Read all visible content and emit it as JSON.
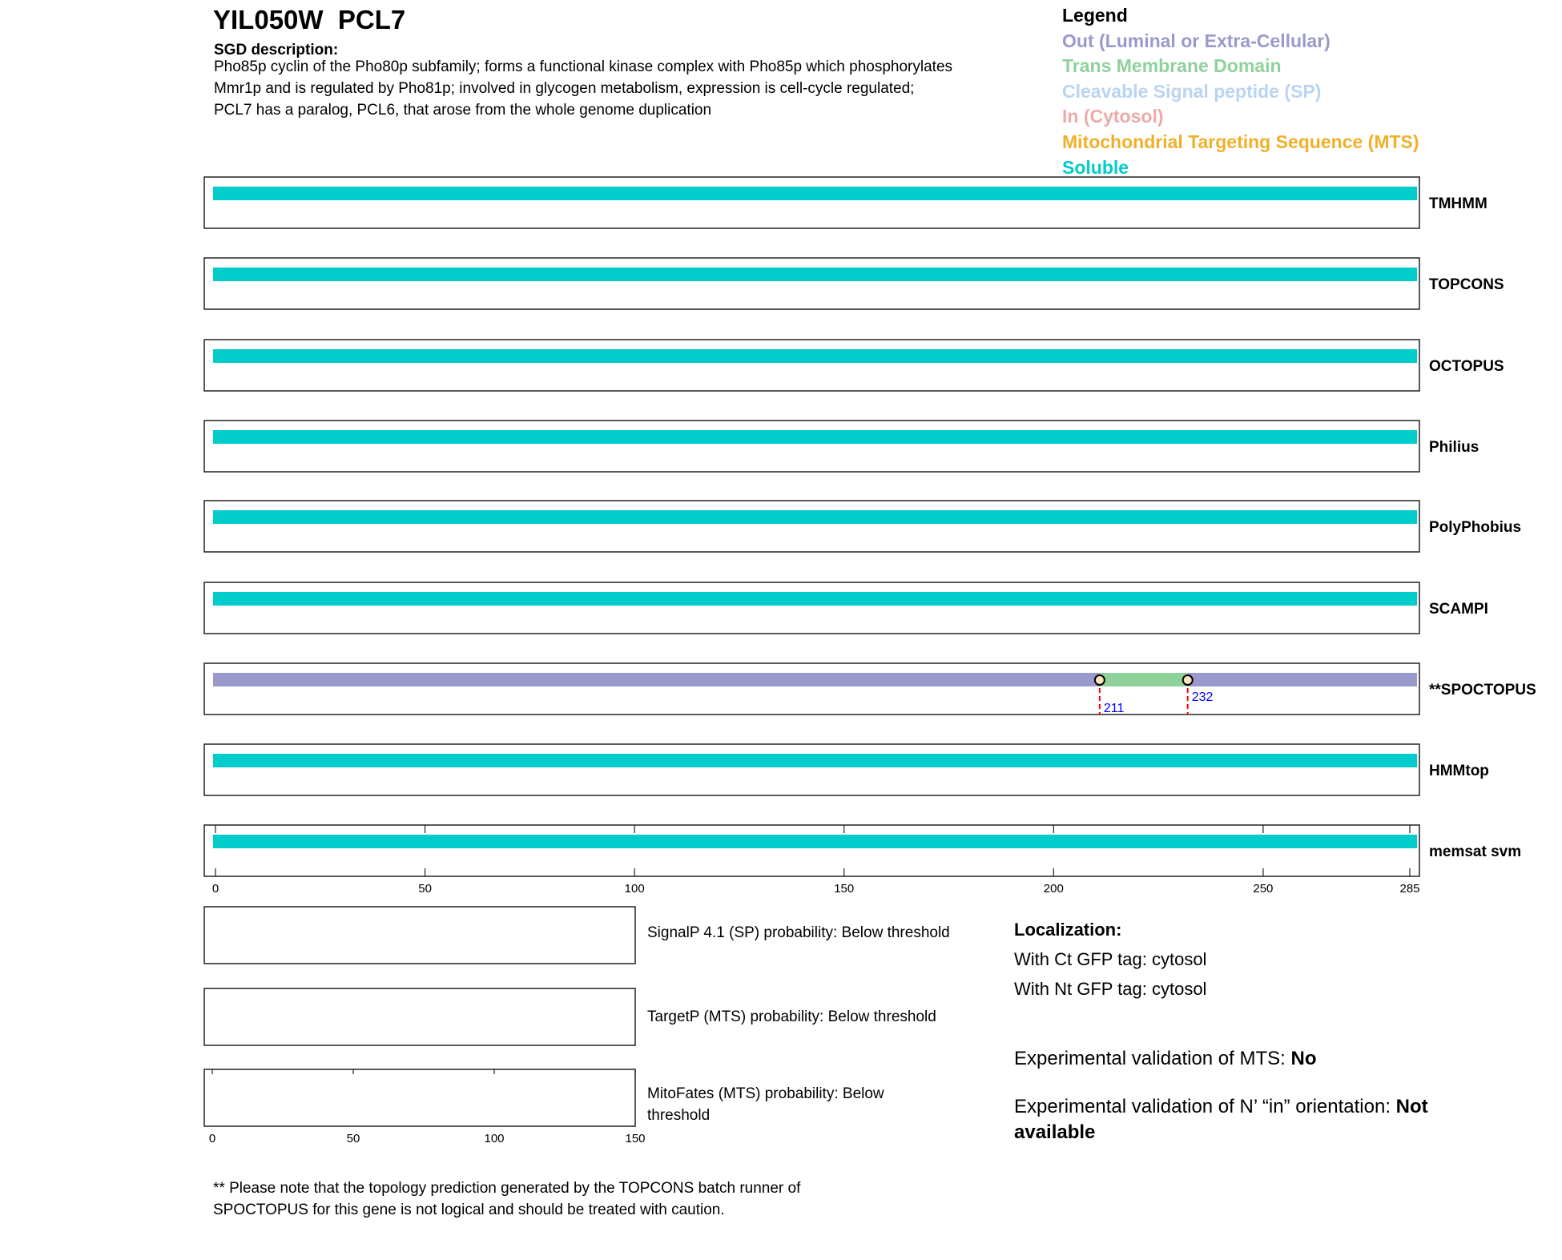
{
  "header": {
    "title": "YIL050W  PCL7",
    "sgd_label": "SGD description:",
    "sgd_lines": [
      "Pho85p cyclin of the Pho80p subfamily; forms a functional kinase complex with Pho85p which phosphorylates",
      "Mmr1p and is regulated by Pho81p; involved in glycogen metabolism, expression is cell-cycle regulated;",
      "PCL7 has a paralog, PCL6, that arose from the whole genome duplication"
    ]
  },
  "legend": {
    "title": "Legend",
    "items": [
      {
        "label": "Out (Luminal or Extra-Cellular)",
        "color": "#9999cc"
      },
      {
        "label": "Trans Membrane Domain",
        "color": "#8fd19a"
      },
      {
        "label": "Cleavable Signal peptide (SP)",
        "color": "#b9d4f2"
      },
      {
        "label": "In (Cytosol)",
        "color": "#eeaaaa"
      },
      {
        "label": "Mitochondrial Targeting Sequence (MTS)",
        "color": "#f0b02a"
      },
      {
        "label": "Soluble",
        "color": "#00cccc"
      }
    ]
  },
  "sequence_length": 285,
  "tracks": [
    {
      "name": "TMHMM",
      "segments": [
        {
          "start": 0,
          "end": 285,
          "type": "Soluble"
        }
      ]
    },
    {
      "name": "TOPCONS",
      "segments": [
        {
          "start": 0,
          "end": 285,
          "type": "Soluble"
        }
      ]
    },
    {
      "name": "OCTOPUS",
      "segments": [
        {
          "start": 0,
          "end": 285,
          "type": "Soluble"
        }
      ]
    },
    {
      "name": "Philius",
      "segments": [
        {
          "start": 0,
          "end": 285,
          "type": "Soluble"
        }
      ]
    },
    {
      "name": "PolyPhobius",
      "segments": [
        {
          "start": 0,
          "end": 285,
          "type": "Soluble"
        }
      ]
    },
    {
      "name": "SCAMPI",
      "segments": [
        {
          "start": 0,
          "end": 285,
          "type": "Soluble"
        }
      ]
    },
    {
      "name": "**SPOCTOPUS",
      "segments": [
        {
          "start": 0,
          "end": 211,
          "type": "Out"
        },
        {
          "start": 211,
          "end": 232,
          "type": "TM"
        },
        {
          "start": 232,
          "end": 285,
          "type": "Out"
        }
      ],
      "markers": [
        {
          "pos": 211,
          "label": "211"
        },
        {
          "pos": 232,
          "label": "232"
        }
      ]
    },
    {
      "name": "HMMtop",
      "segments": [
        {
          "start": 0,
          "end": 285,
          "type": "Soluble"
        }
      ]
    },
    {
      "name": "memsat svm",
      "segments": [
        {
          "start": 0,
          "end": 285,
          "type": "Soluble"
        }
      ]
    }
  ],
  "axis": {
    "ticks": [
      "0",
      "50",
      "100",
      "150",
      "200",
      "250",
      "285"
    ]
  },
  "probabilities": {
    "axis_ticks": [
      "0",
      "50",
      "100",
      "150"
    ],
    "items": [
      {
        "label": "SignalP 4.1 (SP) probability: Below threshold"
      },
      {
        "label": "TargetP (MTS) probability: Below threshold"
      },
      {
        "label_lines": [
          "MitoFates (MTS) probability: Below",
          "threshold"
        ]
      }
    ]
  },
  "localization": {
    "title": "Localization:",
    "ct": "With Ct GFP tag: cytosol",
    "nt": "With Nt GFP tag: cytosol",
    "mts_prefix": "Experimental validation of MTS: ",
    "mts_value": "No",
    "orient_prefix": "Experimental validation of N’ “in” orientation: ",
    "orient_value_1": "Not",
    "orient_value_2": "available"
  },
  "footnote": [
    "** Please note that the topology prediction generated by the TOPCONS batch runner of",
    "SPOCTOPUS for this gene is not logical and should be treated with caution."
  ]
}
